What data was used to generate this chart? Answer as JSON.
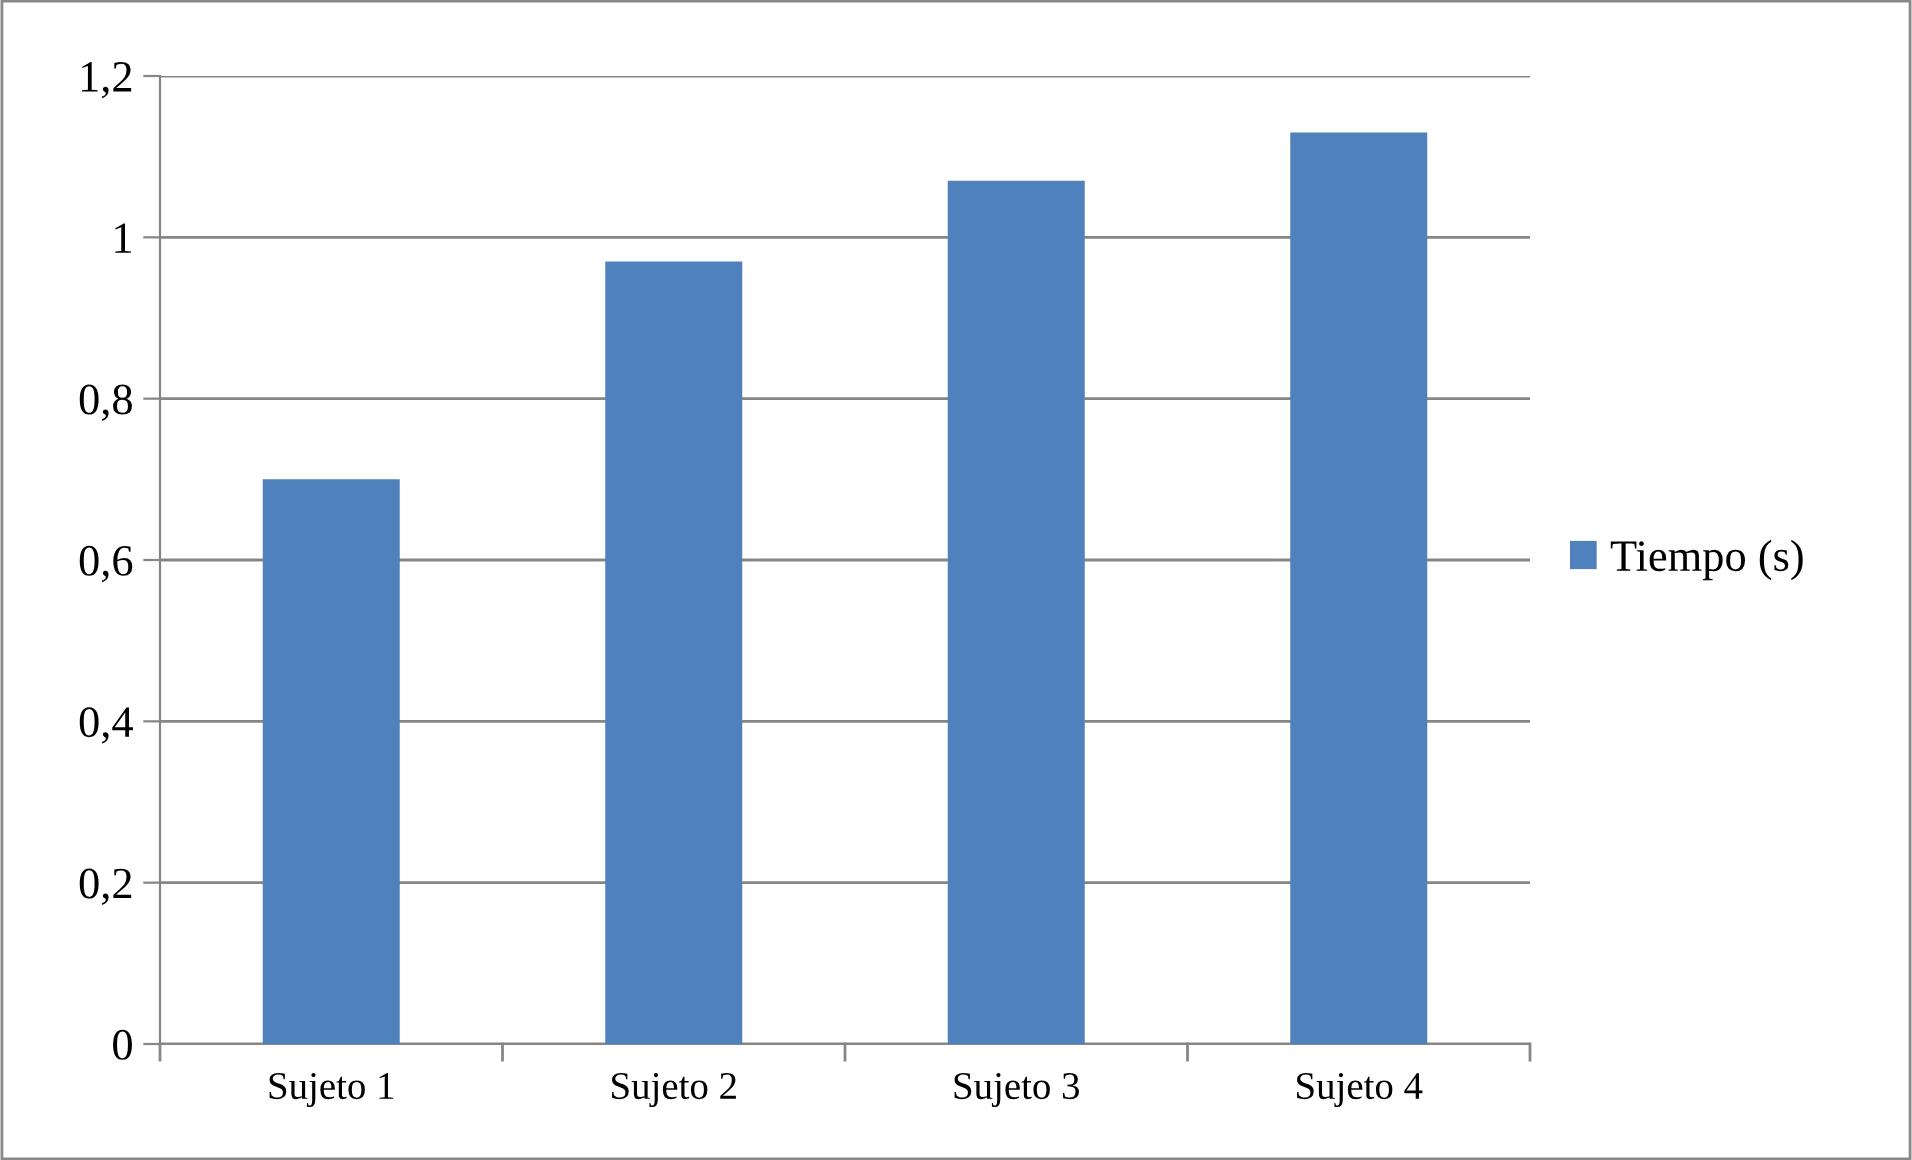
{
  "chart_data": {
    "type": "bar",
    "categories": [
      "Sujeto 1",
      "Sujeto 2",
      "Sujeto 3",
      "Sujeto 4"
    ],
    "series": [
      {
        "name": "Tiempo (s)",
        "color": "#4f81bd",
        "values": [
          0.7,
          0.97,
          1.07,
          1.13
        ]
      }
    ],
    "ylim": [
      0,
      1.2
    ],
    "yticks": [
      0,
      {
        "value": 0.2,
        "label": "0,2"
      },
      {
        "value": 0.4,
        "label": "0,4"
      },
      {
        "value": 0.6,
        "label": "0,6"
      },
      {
        "value": 0.8,
        "label": "0,8"
      },
      1,
      {
        "value": 1.2,
        "label": "1,2"
      }
    ],
    "grid": "y",
    "legend": "right"
  }
}
